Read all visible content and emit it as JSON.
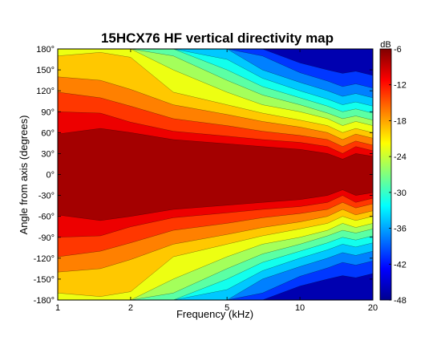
{
  "chart_data": {
    "type": "heatmap",
    "title": "15HCX76 HF vertical directivity map",
    "xlabel": "Frequency (kHz)",
    "ylabel": "Angle from axis (degrees)",
    "x_scale": "log",
    "xlim": [
      1,
      20
    ],
    "ylim": [
      -180,
      180
    ],
    "x_ticks": [
      1,
      2,
      5,
      10,
      20
    ],
    "x_tick_labels": [
      "1",
      "2",
      "5",
      "10",
      "20"
    ],
    "y_ticks": [
      180,
      150,
      120,
      90,
      60,
      30,
      0,
      -30,
      -60,
      -90,
      -120,
      -150,
      -180
    ],
    "y_tick_labels": [
      "180°",
      "150°",
      "120°",
      "90°",
      "60°",
      "30°",
      "0°",
      "-30°",
      "-60°",
      "-90°",
      "-120°",
      "-150°",
      "-180°"
    ],
    "colorbar": {
      "label": "dB",
      "range": [
        -48,
        -6
      ],
      "ticks": [
        -6,
        -12,
        -18,
        -24,
        -30,
        -36,
        -42,
        -48
      ],
      "tick_labels": [
        "-6",
        "-12",
        "-18",
        "-24",
        "-30",
        "-36",
        "-42",
        "-48"
      ],
      "colormap": "jet"
    },
    "contour_levels_db": [
      -9,
      -12,
      -15,
      -18,
      -21,
      -24,
      -27,
      -30,
      -33,
      -36,
      -39,
      -42
    ],
    "level_half_angle_deg": {
      "frequency_khz": [
        1,
        1.5,
        2,
        3,
        5,
        7,
        10,
        13,
        15,
        17,
        20
      ],
      "-9": [
        58,
        66,
        60,
        50,
        44,
        40,
        36,
        30,
        22,
        30,
        26
      ],
      "-12": [
        90,
        88,
        75,
        62,
        55,
        50,
        46,
        40,
        30,
        40,
        34
      ],
      "-15": [
        118,
        110,
        98,
        80,
        70,
        62,
        56,
        50,
        40,
        48,
        42
      ],
      "-18": [
        140,
        135,
        122,
        100,
        86,
        76,
        68,
        60,
        50,
        58,
        52
      ],
      "-21": [
        170,
        175,
        168,
        118,
        100,
        88,
        78,
        70,
        60,
        66,
        60
      ],
      "-24": [
        180,
        180,
        180,
        150,
        118,
        100,
        90,
        80,
        70,
        76,
        70
      ],
      "-27": [
        180,
        180,
        180,
        170,
        135,
        114,
        100,
        88,
        80,
        84,
        78
      ],
      "-30": [
        180,
        180,
        180,
        180,
        150,
        126,
        110,
        98,
        90,
        94,
        88
      ],
      "-33": [
        180,
        180,
        180,
        180,
        165,
        138,
        120,
        108,
        100,
        104,
        98
      ],
      "-36": [
        180,
        180,
        180,
        180,
        180,
        150,
        132,
        120,
        112,
        116,
        110
      ],
      "-39": [
        180,
        180,
        180,
        180,
        180,
        170,
        146,
        134,
        126,
        130,
        124
      ],
      "-42": [
        180,
        180,
        180,
        180,
        180,
        180,
        160,
        150,
        145,
        148,
        142
      ]
    }
  }
}
